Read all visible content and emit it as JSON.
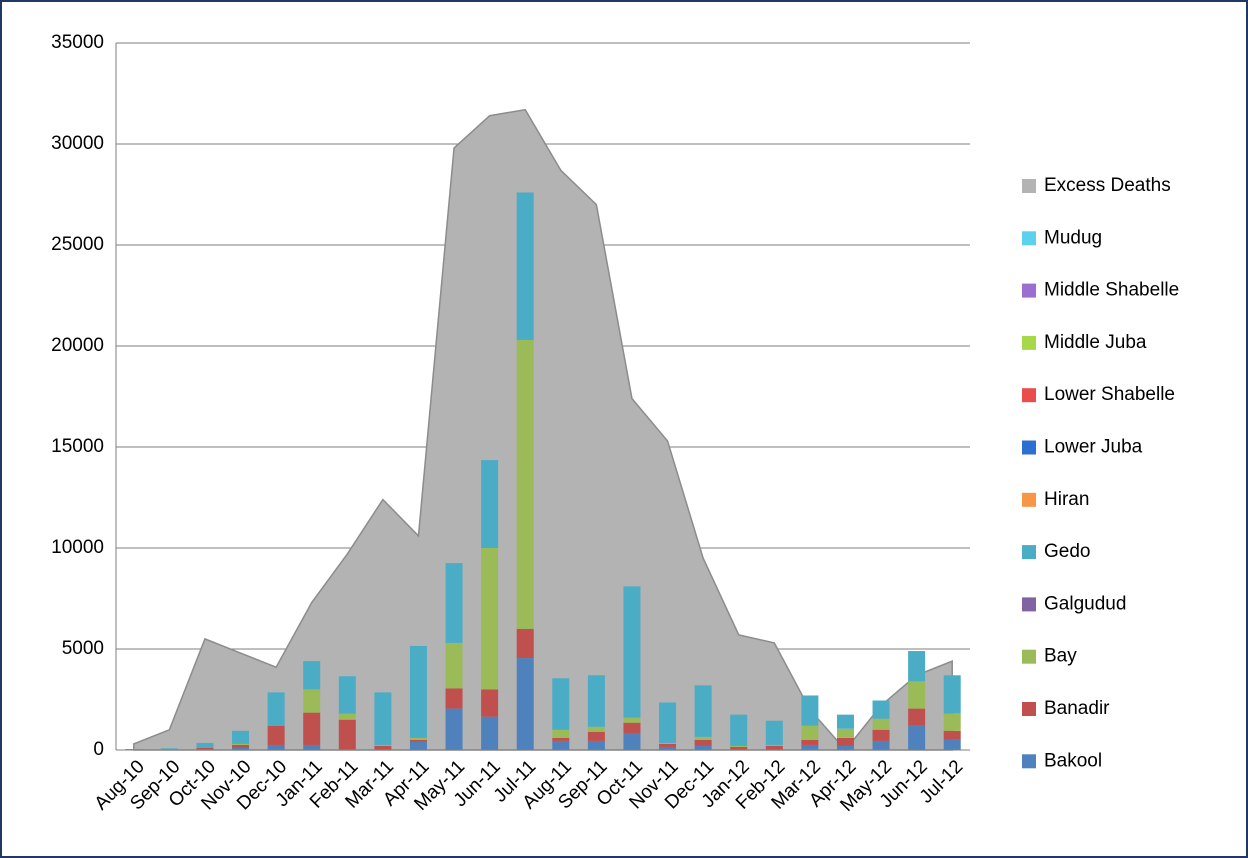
{
  "chart_data": {
    "type": "stacked_bar_area",
    "categories": [
      "Aug-10",
      "Sep-10",
      "Oct-10",
      "Nov-10",
      "Dec-10",
      "Jan-11",
      "Feb-11",
      "Mar-11",
      "Apr-11",
      "May-11",
      "Jun-11",
      "Jul-11",
      "Aug-11",
      "Sep-11",
      "Oct-11",
      "Nov-11",
      "Dec-11",
      "Jan-12",
      "Feb-12",
      "Mar-12",
      "Apr-12",
      "May-12",
      "Jun-12",
      "Jul-12"
    ],
    "ylim": [
      0,
      35000
    ],
    "yticks": [
      0,
      5000,
      10000,
      15000,
      20000,
      25000,
      30000,
      35000
    ],
    "grid": true,
    "area": {
      "name": "Excess Deaths",
      "color": "#b3b3b3",
      "values": [
        300,
        1000,
        5500,
        4800,
        4100,
        7300,
        9700,
        12400,
        10600,
        29800,
        31400,
        31700,
        28700,
        27000,
        17400,
        15300,
        9500,
        5700,
        5300,
        2000,
        0,
        2200,
        3700,
        4400
      ]
    },
    "series": [
      {
        "name": "Bakool",
        "color": "#4f81bd",
        "values": [
          0,
          0,
          50,
          100,
          250,
          250,
          50,
          50,
          400,
          2050,
          1650,
          4550,
          450,
          450,
          800,
          150,
          200,
          50,
          50,
          250,
          200,
          450,
          1200,
          500
        ]
      },
      {
        "name": "Banadir",
        "color": "#c0504d",
        "values": [
          0,
          0,
          50,
          150,
          950,
          1600,
          1450,
          150,
          100,
          1000,
          1350,
          1450,
          150,
          450,
          550,
          150,
          300,
          100,
          150,
          250,
          400,
          550,
          850,
          450
        ]
      },
      {
        "name": "Bay",
        "color": "#9bbb59",
        "values": [
          0,
          0,
          0,
          50,
          0,
          1150,
          300,
          50,
          100,
          2250,
          7000,
          14300,
          400,
          250,
          250,
          50,
          150,
          50,
          50,
          700,
          450,
          550,
          1350,
          850
        ]
      },
      {
        "name": "Galgudud",
        "color": "#8064a2",
        "values": [
          0,
          0,
          0,
          0,
          0,
          0,
          0,
          0,
          0,
          0,
          0,
          0,
          0,
          0,
          0,
          0,
          0,
          0,
          0,
          0,
          0,
          0,
          0,
          0
        ]
      },
      {
        "name": "Gedo",
        "color": "#4bacc6",
        "values": [
          50,
          80,
          250,
          650,
          1650,
          1400,
          1850,
          2600,
          4550,
          3950,
          4350,
          7300,
          2550,
          2550,
          6500,
          2000,
          2550,
          1550,
          1200,
          1500,
          700,
          900,
          1500,
          1900
        ]
      },
      {
        "name": "Hiran",
        "color": "#f79646",
        "values": [
          0,
          0,
          0,
          0,
          0,
          0,
          0,
          0,
          0,
          0,
          0,
          0,
          0,
          0,
          0,
          0,
          0,
          0,
          0,
          0,
          0,
          0,
          0,
          0
        ]
      },
      {
        "name": "Lower Juba",
        "color": "#2c6fd1",
        "values": [
          0,
          0,
          0,
          0,
          0,
          0,
          0,
          0,
          0,
          0,
          0,
          0,
          0,
          0,
          0,
          0,
          0,
          0,
          0,
          0,
          0,
          0,
          0,
          0
        ]
      },
      {
        "name": "Lower Shabelle",
        "color": "#e94d4d",
        "values": [
          0,
          0,
          0,
          0,
          0,
          0,
          0,
          0,
          0,
          0,
          0,
          0,
          0,
          0,
          0,
          0,
          0,
          0,
          0,
          0,
          0,
          0,
          0,
          0
        ]
      },
      {
        "name": "Middle Juba",
        "color": "#a6d84a",
        "values": [
          0,
          0,
          0,
          0,
          0,
          0,
          0,
          0,
          0,
          0,
          0,
          0,
          0,
          0,
          0,
          0,
          0,
          0,
          0,
          0,
          0,
          0,
          0,
          0
        ]
      },
      {
        "name": "Middle Shabelle",
        "color": "#9b6fd0",
        "values": [
          0,
          0,
          0,
          0,
          0,
          0,
          0,
          0,
          0,
          0,
          0,
          0,
          0,
          0,
          0,
          0,
          0,
          0,
          0,
          0,
          0,
          0,
          0,
          0
        ]
      },
      {
        "name": "Mudug",
        "color": "#5bd0ef",
        "values": [
          0,
          0,
          0,
          0,
          0,
          0,
          0,
          0,
          0,
          0,
          0,
          0,
          0,
          0,
          0,
          0,
          0,
          0,
          0,
          0,
          0,
          0,
          0,
          0
        ]
      }
    ]
  }
}
